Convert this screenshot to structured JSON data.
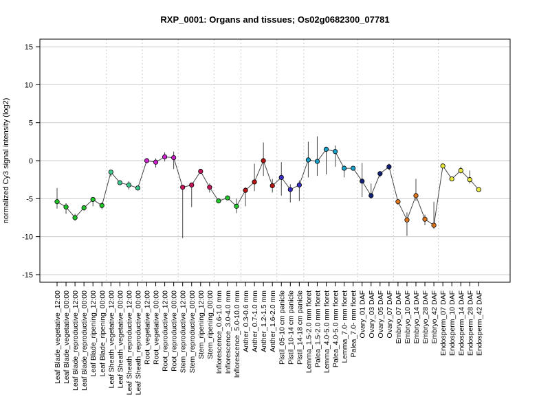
{
  "chart_data": {
    "type": "line",
    "title": "RXP_0001: Organs and tissues; Os02g0682300_07781",
    "xlabel": "",
    "ylabel": "normalized Cy3 signal intensity (log2)",
    "ylim": [
      -16,
      16
    ],
    "yticks": [
      -15,
      -10,
      -5,
      0,
      5,
      10,
      15
    ],
    "grid": true,
    "series_color": "#444444",
    "categories": [
      "Leaf Blade_vegetative_12:00",
      "Leaf Blade_vegetative_00:00",
      "Leaf Blade_reproductive_12:00",
      "Leaf Blade_reproductive_00:00",
      "Leaf Blade_ripening_12:00",
      "Leaf Blade_ripening_00:00",
      "Leaf Sheath_vegetative_12:00",
      "Leaf Sheath_vegetative_00:00",
      "Leaf Sheath_reproductive_12:00",
      "Leaf Sheath_reproductive_00:00",
      "Root_vegetative_12:00",
      "Root_vegetative_00:00",
      "Root_reproductive_12:00",
      "Root_reproductive_00:00",
      "Stem_reproductive_12:00",
      "Stem_reproductive_00:00",
      "Stem_ripening_12:00",
      "Stem_ripening_00:00",
      "Inflorescence_0.6-1.0 mm",
      "Inflorescence_3.0-4.0 mm",
      "Inflorescence_5.0-10.0 mm",
      "Anther_0.3-0.6 mm",
      "Anther_0.7-1.0 mm",
      "Anther_1.2-1.5 mm",
      "Anther_1.6-2.0 mm",
      "Pistil_05-10 cm panicle",
      "Pistil_10-14 cm panicle",
      "Pistil_14-18 cm panicle",
      "Lemma_1.5-2.0 mm floret",
      "Palea_1.5-2.0 mm floret",
      "Lemma_4.0-5.0 mm floret",
      "Palea_4.0-5.0 mm floret",
      "Lemma_7.0- mm floret",
      "Palea_7.0- mm floret",
      "Ovary_01 DAF",
      "Ovary_03 DAF",
      "Ovary_05 DAF",
      "Ovary_07 DAF",
      "Embryo_07 DAF",
      "Embryo_10 DAF",
      "Embryo_14 DAF",
      "Embryo_28 DAF",
      "Embryo_42 DAF",
      "Endosperm_07 DAF",
      "Endosperm_10 DAF",
      "Endosperm_14 DAF",
      "Endosperm_28 DAF",
      "Endosperm_42 DAF"
    ],
    "values": [
      -5.4,
      -6.1,
      -7.5,
      -6.2,
      -5.1,
      -5.9,
      -1.5,
      -2.9,
      -3.2,
      -3.6,
      0.0,
      -0.2,
      0.5,
      0.4,
      -3.5,
      -3.2,
      -1.4,
      -3.5,
      -5.3,
      -4.9,
      -6.0,
      -3.9,
      -2.8,
      0.0,
      -3.3,
      -2.2,
      -3.8,
      -3.2,
      0.1,
      -0.1,
      1.5,
      1.2,
      -1.0,
      -1.0,
      -2.7,
      -4.6,
      -1.7,
      -0.8,
      -5.4,
      -7.8,
      -4.6,
      -7.7,
      -8.5,
      -0.7,
      -2.4,
      -1.3,
      -2.5,
      -3.8
    ],
    "err_low": [
      -6.3,
      -7.0,
      -7.9,
      -6.6,
      -6.0,
      -6.4,
      -2.1,
      -3.2,
      -3.8,
      -3.9,
      -0.2,
      -0.9,
      -0.1,
      -1.1,
      -10.2,
      -6.1,
      -1.7,
      -4.2,
      -5.6,
      -5.1,
      -6.9,
      -6.0,
      -4.0,
      -2.0,
      -4.2,
      -4.6,
      -5.5,
      -5.3,
      -2.2,
      -2.0,
      -1.8,
      -0.8,
      -2.2,
      -1.3,
      -4.8,
      -5.0,
      -2.2,
      -1.2,
      -5.8,
      -9.9,
      -5.3,
      -8.5,
      -9.0,
      -1.0,
      -2.7,
      -1.7,
      -3.0,
      -4.0
    ],
    "err_high": [
      -3.6,
      -5.6,
      -7.0,
      -5.9,
      -4.8,
      -5.5,
      -1.3,
      -2.7,
      -2.7,
      -3.3,
      0.1,
      0.3,
      1.1,
      1.2,
      -3.3,
      -2.9,
      -1.2,
      -3.0,
      -5.0,
      -4.6,
      -5.0,
      -3.5,
      -0.4,
      2.4,
      -2.4,
      -0.2,
      -3.1,
      -2.6,
      2.5,
      3.2,
      1.6,
      2.0,
      -0.6,
      -0.8,
      -0.3,
      -3.0,
      -1.4,
      -0.4,
      -5.2,
      -6.8,
      -2.4,
      -7.1,
      -5.4,
      -0.4,
      -2.1,
      -0.8,
      -1.3,
      -3.5
    ],
    "colors": [
      "#22c42b",
      "#22c42b",
      "#22c42b",
      "#22c42b",
      "#22c42b",
      "#22c42b",
      "#3cc88c",
      "#3cc88c",
      "#3cc88c",
      "#3cc88c",
      "#cc22cc",
      "#cc22cc",
      "#cc22cc",
      "#cc22cc",
      "#c4145a",
      "#c4145a",
      "#c4145a",
      "#c4145a",
      "#22c42b",
      "#22c42b",
      "#22c42b",
      "#b81414",
      "#b81414",
      "#b81414",
      "#b81414",
      "#3a2fc8",
      "#3a2fc8",
      "#3a2fc8",
      "#1aa0c8",
      "#1aa0c8",
      "#1aa0c8",
      "#1aa0c8",
      "#1aa0c8",
      "#1aa0c8",
      "#14237a",
      "#14237a",
      "#14237a",
      "#14237a",
      "#e07820",
      "#e07820",
      "#e07820",
      "#e07820",
      "#e07820",
      "#e6e63c",
      "#e6e63c",
      "#e6e63c",
      "#e6e63c",
      "#e6e63c"
    ],
    "group_boundaries_after": [
      5,
      9,
      13,
      17,
      20,
      24,
      27,
      33,
      37,
      42
    ]
  }
}
